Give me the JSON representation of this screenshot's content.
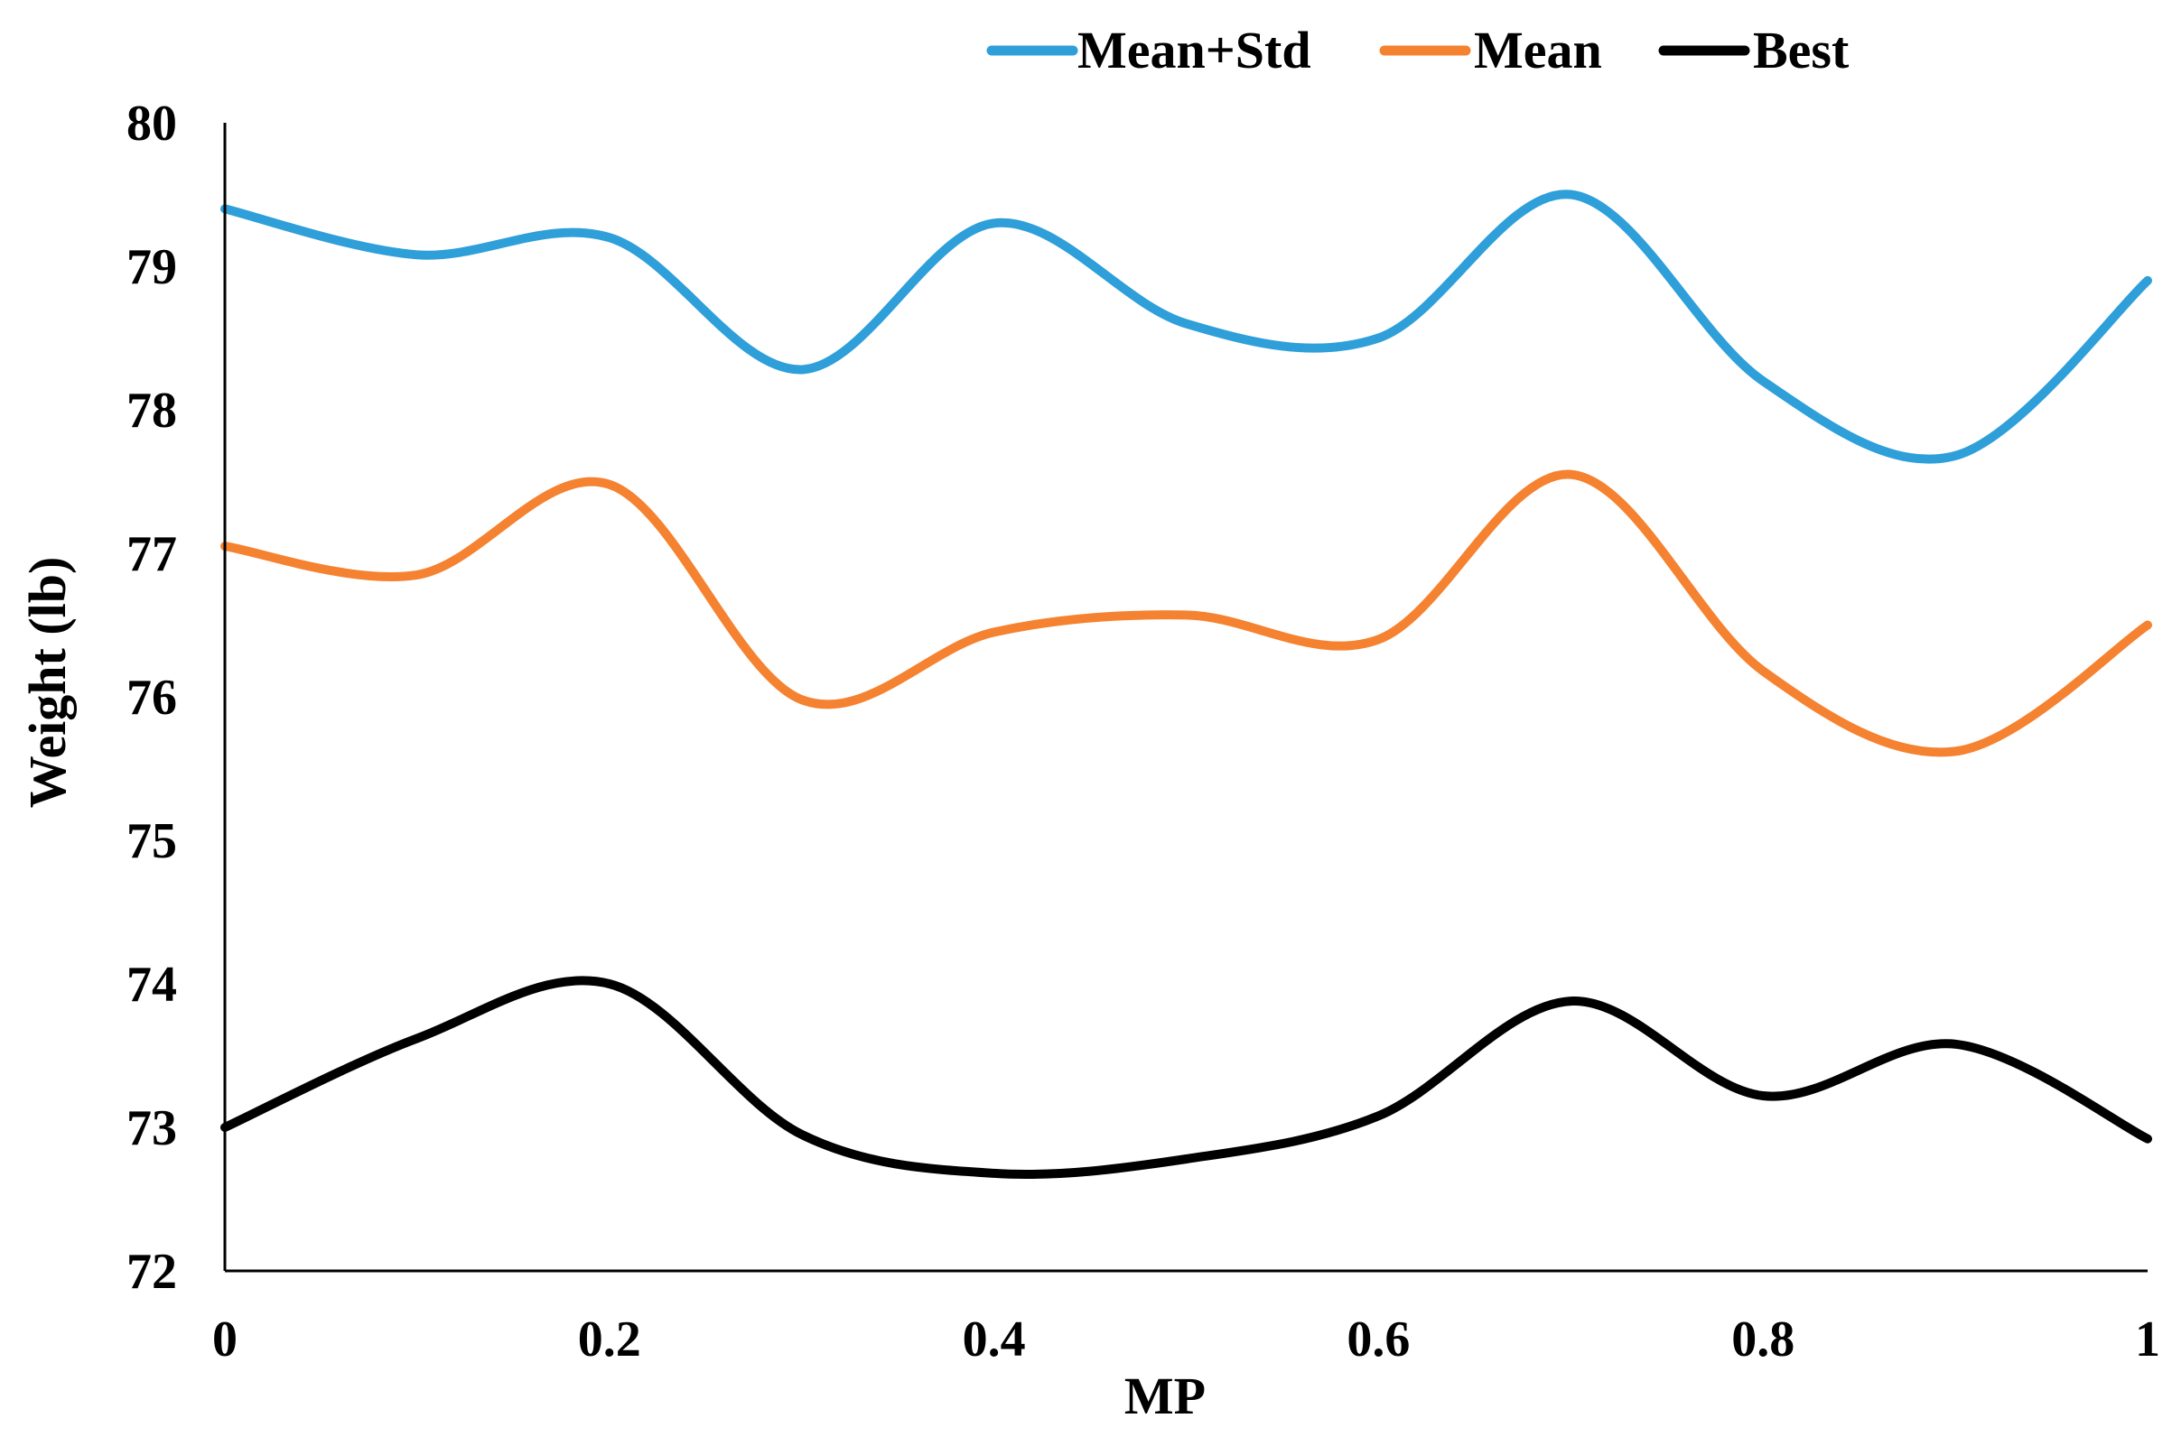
{
  "chart_data": {
    "type": "line",
    "smooth": true,
    "title": "",
    "xlabel": "MP",
    "ylabel": "Weight (lb)",
    "xlim": [
      0,
      1
    ],
    "ylim": [
      72,
      80
    ],
    "x_ticks": [
      "0",
      "0.2",
      "0.4",
      "0.6",
      "0.8",
      "1"
    ],
    "y_ticks": [
      "72",
      "73",
      "74",
      "75",
      "76",
      "77",
      "78",
      "79",
      "80"
    ],
    "grid": false,
    "legend_position": "top-right",
    "x": [
      0,
      0.1,
      0.2,
      0.3,
      0.4,
      0.5,
      0.6,
      0.7,
      0.8,
      0.9,
      1.0
    ],
    "series": [
      {
        "name": "Mean+Std",
        "color": "#2E9FD9",
        "values": [
          79.4,
          79.08,
          79.2,
          78.28,
          79.3,
          78.6,
          78.5,
          79.5,
          78.2,
          77.68,
          78.9
        ]
      },
      {
        "name": "Mean",
        "color": "#F58230",
        "values": [
          77.05,
          76.85,
          77.48,
          75.98,
          76.45,
          76.57,
          76.4,
          77.55,
          76.18,
          75.62,
          76.5
        ]
      },
      {
        "name": "Best",
        "color": "#000000",
        "values": [
          73.0,
          73.62,
          74.0,
          72.95,
          72.68,
          72.78,
          73.08,
          73.88,
          73.22,
          73.58,
          72.92
        ]
      }
    ]
  }
}
